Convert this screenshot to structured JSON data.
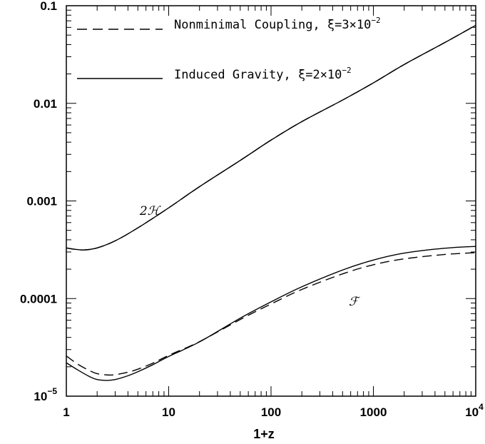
{
  "chart_data": {
    "type": "line",
    "xlabel": "1+z",
    "ylabel": "",
    "x_scale": "log",
    "y_scale": "log",
    "xlim": [
      1,
      10000
    ],
    "ylim": [
      1e-05,
      0.1
    ],
    "x_ticks": [
      {
        "value": 1,
        "label": "1"
      },
      {
        "value": 10,
        "label": "10"
      },
      {
        "value": 100,
        "label": "100"
      },
      {
        "value": 1000,
        "label": "1000"
      },
      {
        "value": 10000,
        "label": "10",
        "exponent": "4"
      }
    ],
    "y_ticks": [
      {
        "value": 1e-05,
        "label": "10",
        "exponent": "−5"
      },
      {
        "value": 0.0001,
        "label": "0.0001"
      },
      {
        "value": 0.001,
        "label": "0.001"
      },
      {
        "value": 0.01,
        "label": "0.01"
      },
      {
        "value": 0.1,
        "label": "0.1"
      }
    ],
    "legend": {
      "placement": "top-left",
      "entries": [
        {
          "style": "dashed",
          "text": "Nonminimal Coupling, ξ=3×10",
          "exponent": "−2"
        },
        {
          "style": "solid",
          "text": "Induced Gravity, ξ=2×10",
          "exponent": "−2"
        }
      ]
    },
    "annotations": [
      {
        "text": "2ℋ",
        "x": 6.5,
        "y": 0.00072
      },
      {
        "text": "ℱ",
        "x": 640,
        "y": 8.5e-05
      }
    ],
    "series": [
      {
        "style": "solid",
        "model": "Induced Gravity",
        "x": [
          1,
          1.2,
          1.5,
          2,
          3,
          5,
          10,
          20,
          50,
          100,
          200,
          500,
          1000,
          2000,
          5000,
          10000
        ],
        "y": [
          0.00033,
          0.00032,
          0.000315,
          0.00033,
          0.00039,
          0.00053,
          0.00085,
          0.0014,
          0.0026,
          0.0042,
          0.0065,
          0.0108,
          0.0162,
          0.025,
          0.042,
          0.063
        ]
      },
      {
        "style": "dashed",
        "model": "Nonminimal Coupling",
        "x": [
          1,
          1.2,
          1.5,
          2,
          3,
          5,
          10,
          20,
          50,
          100,
          200,
          500,
          1000,
          2000,
          5000,
          10000
        ],
        "y": [
          0.00033,
          0.00032,
          0.000315,
          0.00033,
          0.00039,
          0.00053,
          0.00085,
          0.0014,
          0.0026,
          0.0042,
          0.0065,
          0.0108,
          0.0162,
          0.025,
          0.042,
          0.063
        ]
      },
      {
        "style": "solid",
        "model": "Induced Gravity",
        "x": [
          1,
          1.3,
          1.7,
          2,
          2.5,
          3,
          4,
          5,
          7,
          10,
          20,
          50,
          100,
          200,
          500,
          1000,
          2000,
          5000,
          10000
        ],
        "y": [
          2.2e-05,
          1.85e-05,
          1.58e-05,
          1.48e-05,
          1.45e-05,
          1.48e-05,
          1.62e-05,
          1.78e-05,
          2.1e-05,
          2.55e-05,
          3.6e-05,
          6.3e-05,
          9.25e-05,
          0.000132,
          0.000196,
          0.000248,
          0.000292,
          0.000328,
          0.000342
        ]
      },
      {
        "style": "dashed",
        "model": "Nonminimal Coupling",
        "x": [
          1,
          1.3,
          1.7,
          2,
          2.5,
          3,
          4,
          5,
          7,
          10,
          20,
          50,
          100,
          200,
          500,
          1000,
          2000,
          5000,
          10000
        ],
        "y": [
          2.58e-05,
          2.12e-05,
          1.82e-05,
          1.7e-05,
          1.65e-05,
          1.66e-05,
          1.76e-05,
          1.89e-05,
          2.18e-05,
          2.62e-05,
          3.62e-05,
          6.1e-05,
          8.8e-05,
          0.000124,
          0.000179,
          0.000222,
          0.000255,
          0.000283,
          0.000295
        ]
      }
    ]
  }
}
